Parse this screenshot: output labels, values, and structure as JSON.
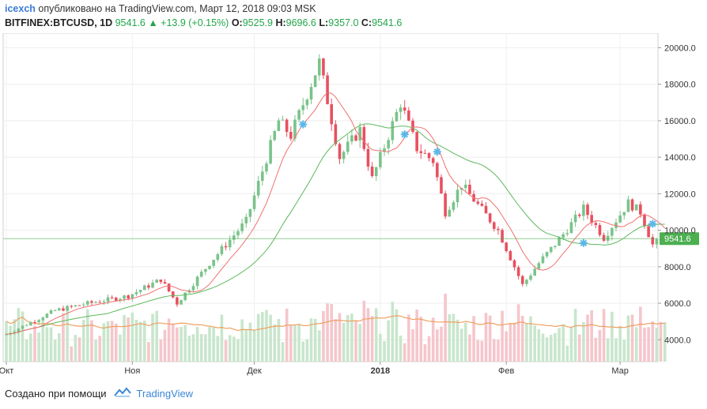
{
  "header": {
    "author": "icexch",
    "published": "опубликовано на TradingView.com, Март 12, 2018 09:03 MSK"
  },
  "symbol_line": {
    "symbol": "BITFINEX:BTCUSD, 1D",
    "last": "9541.6",
    "change": "▲ +13.9 (+0.15%)",
    "o_label": "O:",
    "o_value": "9525.9",
    "h_label": "H:",
    "h_value": "9696.6",
    "l_label": "L:",
    "l_value": "9357.0",
    "c_label": "C:",
    "c_value": "9541.6"
  },
  "footer": {
    "created_with": "Создано при помощи",
    "brand": "TradingView"
  },
  "colors": {
    "up": "#7ac38a",
    "down": "#e8505f",
    "fast_ma": "#f07070",
    "slow_ma": "#5cb85c",
    "vol_ma": "#f0a060",
    "price_line": "#4caf50",
    "marker": "#5bb8e8"
  },
  "chart_data": {
    "type": "candlestick",
    "x_tick_labels": [
      "Окт",
      "Ноя",
      "Дек",
      "2018",
      "Фев",
      "Мар"
    ],
    "y_tick_labels": [
      "4000.0",
      "6000.0",
      "8000.0",
      "10000.0",
      "12000.0",
      "14000.0",
      "16000.0",
      "18000.0",
      "20000.0"
    ],
    "y_range": [
      2800,
      20800
    ],
    "last_price_label": "9541.6",
    "last_price": 9541.6,
    "indicators": [
      "fast moving average (red)",
      "slow moving average (green)",
      "volume bars",
      "volume moving average (orange)"
    ],
    "crossover_markers": [
      {
        "date": "2017-12-13",
        "value": 15800
      },
      {
        "date": "2018-01-07",
        "value": 15250
      },
      {
        "date": "2018-01-15",
        "value": 14300
      },
      {
        "date": "2018-02-20",
        "value": 9300
      },
      {
        "date": "2018-03-09",
        "value": 10350
      }
    ],
    "ohlc_waypoints": [
      [
        "2017-10-01",
        4300
      ],
      [
        "2017-10-13",
        5600
      ],
      [
        "2017-10-20",
        5950
      ],
      [
        "2017-10-31",
        6400
      ],
      [
        "2017-11-08",
        7300
      ],
      [
        "2017-11-12",
        6000
      ],
      [
        "2017-11-20",
        8200
      ],
      [
        "2017-11-29",
        10500
      ],
      [
        "2017-12-07",
        16000
      ],
      [
        "2017-12-10",
        15200
      ],
      [
        "2017-12-17",
        19200
      ],
      [
        "2017-12-22",
        14000
      ],
      [
        "2017-12-27",
        15500
      ],
      [
        "2017-12-30",
        12800
      ],
      [
        "2018-01-06",
        17000
      ],
      [
        "2018-01-10",
        14500
      ],
      [
        "2018-01-14",
        13800
      ],
      [
        "2018-01-17",
        11000
      ],
      [
        "2018-01-21",
        12500
      ],
      [
        "2018-01-30",
        10000
      ],
      [
        "2018-02-05",
        7000
      ],
      [
        "2018-02-09",
        8200
      ],
      [
        "2018-02-14",
        9500
      ],
      [
        "2018-02-20",
        11200
      ],
      [
        "2018-02-25",
        9600
      ],
      [
        "2018-03-03",
        11500
      ],
      [
        "2018-03-06",
        11000
      ],
      [
        "2018-03-09",
        9200
      ],
      [
        "2018-03-12",
        9541.6
      ]
    ]
  }
}
